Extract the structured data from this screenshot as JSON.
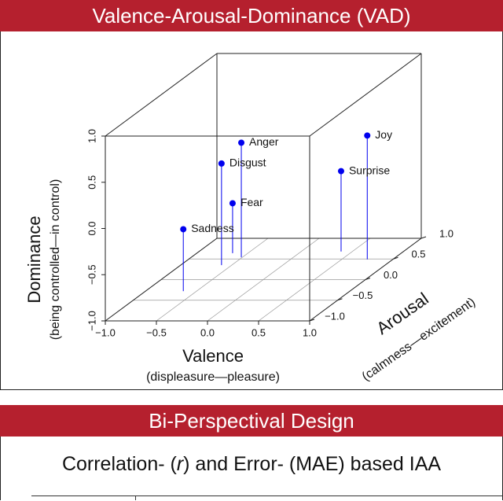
{
  "header": {
    "title": "Valence-Arousal-Dominance (VAD)"
  },
  "chart_data": {
    "type": "scatter3d",
    "xlabel": "Valence",
    "xsublabel": "(displeasure—pleasure)",
    "ylabel": "Arousal",
    "ysublabel": "(calmness—excitement)",
    "zlabel": "Dominance",
    "zsublabel": "(being controlled—in control)",
    "labels": [
      "Anger",
      "Disgust",
      "Fear",
      "Sadness",
      "Joy",
      "Surprise"
    ],
    "x": [
      -0.51,
      -0.6,
      -0.65,
      -0.63,
      0.75,
      0.39
    ],
    "y": [
      0.54,
      0.35,
      0.64,
      -0.28,
      0.49,
      0.68
    ],
    "z": [
      0.24,
      0.1,
      -0.46,
      -0.33,
      0.34,
      -0.13
    ],
    "color": "#0000ee",
    "xlim": [
      -1,
      1
    ],
    "ylim": [
      -1,
      1
    ],
    "zlim": [
      -1,
      1
    ],
    "xticks": [
      {
        "value": -1,
        "label": "−1.0"
      },
      {
        "value": -0.5,
        "label": "−0.5"
      },
      {
        "value": 0,
        "label": "0.0"
      },
      {
        "value": 0.5,
        "label": "0.5"
      },
      {
        "value": 1,
        "label": "1.0"
      }
    ],
    "yticks": [
      {
        "value": -1,
        "label": "−1.0"
      },
      {
        "value": -0.5,
        "label": "−0.5"
      },
      {
        "value": 0,
        "label": "0.0"
      },
      {
        "value": 0.5,
        "label": "0.5"
      },
      {
        "value": 1,
        "label": "1.0"
      }
    ],
    "zticks": [
      {
        "value": -1,
        "label": "−1.0"
      },
      {
        "value": -0.5,
        "label": "−0.5"
      },
      {
        "value": 0,
        "label": "0.0"
      },
      {
        "value": 0.5,
        "label": "0.5"
      },
      {
        "value": 1,
        "label": "1.0"
      }
    ],
    "grid": true
  },
  "section2": {
    "title": "Bi-Perspectival Design",
    "subtitle": {
      "before": "Correlation- (",
      "symbol": "r",
      "after": ") and Error- (MAE) based IAA"
    }
  }
}
